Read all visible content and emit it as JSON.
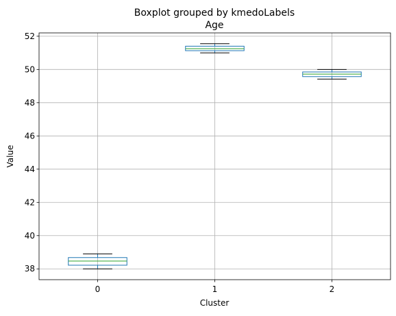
{
  "chart_data": {
    "type": "box",
    "suptitle": "Boxplot grouped by kmedoLabels",
    "title": "Age",
    "xlabel": "Cluster",
    "ylabel": "Value",
    "categories": [
      "0",
      "1",
      "2"
    ],
    "ylim": [
      37.35,
      52.2
    ],
    "yticks": [
      38,
      40,
      42,
      44,
      46,
      48,
      50,
      52
    ],
    "grid": true,
    "boxes": [
      {
        "category": "0",
        "whisker_low": 38.0,
        "q1": 38.22,
        "median": 38.47,
        "q3": 38.68,
        "whisker_high": 38.9
      },
      {
        "category": "1",
        "whisker_low": 51.0,
        "q1": 51.13,
        "median": 51.25,
        "q3": 51.4,
        "whisker_high": 51.55
      },
      {
        "category": "2",
        "whisker_low": 49.42,
        "q1": 49.57,
        "median": 49.72,
        "q3": 49.85,
        "whisker_high": 50.0
      }
    ],
    "colors": {
      "box": "#1f77b4",
      "median": "#2ca02c",
      "whisker": "#000000"
    }
  }
}
